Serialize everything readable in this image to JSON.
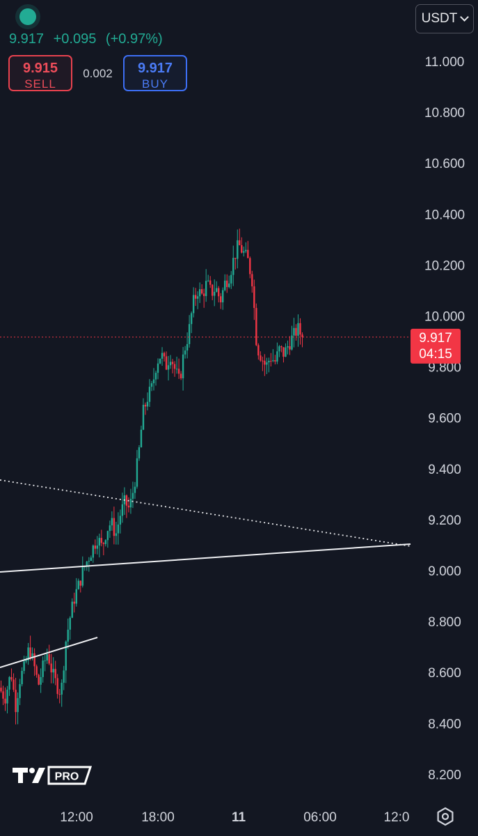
{
  "header": {
    "price": "9.917",
    "change": "+0.095",
    "change_pct": "(+0.97%)",
    "accent": "#22ab94"
  },
  "trade": {
    "sell_price": "9.915",
    "sell_label": "SELL",
    "spread": "0.002",
    "buy_price": "9.917",
    "buy_label": "BUY",
    "sell_color": "#ef4d5a",
    "buy_color": "#4b7cf7"
  },
  "currency_selector": {
    "value": "USDT",
    "icon": "chevron-down-icon"
  },
  "branding": {
    "logo": "tradingview-logo",
    "badge": "PRO"
  },
  "toolbar": {
    "settings_icon": "gear-icon"
  },
  "chart_data": {
    "type": "candlestick",
    "y_ticks": [
      11.0,
      10.8,
      10.6,
      10.4,
      10.2,
      10.0,
      9.8,
      9.6,
      9.4,
      9.2,
      9.0,
      8.8,
      8.6,
      8.4,
      8.2
    ],
    "y_tick_labels": [
      "11.000",
      "10.800",
      "10.600",
      "10.400",
      "10.200",
      "10.000",
      "9.800",
      "9.600",
      "9.400",
      "9.200",
      "9.000",
      "8.800",
      "8.600",
      "8.400",
      "8.200"
    ],
    "ylim": [
      8.08,
      11.12
    ],
    "x_tick_labels": [
      "12:00",
      "18:00",
      "11",
      "06:00",
      "12:0"
    ],
    "current_price": 9.917,
    "current_price_label": "9.917",
    "countdown": "04:15",
    "up_color": "#22ab94",
    "down_color": "#f23645",
    "price_path": [
      [
        0,
        8.54
      ],
      [
        4,
        8.5
      ],
      [
        8,
        8.6
      ],
      [
        11,
        8.47
      ],
      [
        14,
        8.58
      ],
      [
        17,
        8.62
      ],
      [
        20,
        8.7
      ],
      [
        23,
        8.63
      ],
      [
        26,
        8.55
      ],
      [
        29,
        8.62
      ],
      [
        32,
        8.68
      ],
      [
        35,
        8.6
      ],
      [
        38,
        8.55
      ],
      [
        41,
        8.52
      ],
      [
        44,
        8.72
      ],
      [
        47,
        8.82
      ],
      [
        50,
        8.9
      ],
      [
        53,
        8.95
      ],
      [
        56,
        9.01
      ],
      [
        59,
        9.05
      ],
      [
        62,
        9.09
      ],
      [
        65,
        9.13
      ],
      [
        68,
        9.09
      ],
      [
        71,
        9.16
      ],
      [
        74,
        9.19
      ],
      [
        77,
        9.14
      ],
      [
        80,
        9.22
      ],
      [
        83,
        9.27
      ],
      [
        86,
        9.24
      ],
      [
        89,
        9.33
      ],
      [
        92,
        9.45
      ],
      [
        95,
        9.62
      ],
      [
        98,
        9.68
      ],
      [
        101,
        9.72
      ],
      [
        104,
        9.82
      ],
      [
        107,
        9.85
      ],
      [
        110,
        9.8
      ],
      [
        113,
        9.85
      ],
      [
        116,
        9.79
      ],
      [
        119,
        9.74
      ],
      [
        122,
        9.86
      ],
      [
        125,
        9.93
      ],
      [
        128,
        10.05
      ],
      [
        131,
        10.1
      ],
      [
        134,
        10.08
      ],
      [
        137,
        10.13
      ],
      [
        140,
        10.09
      ],
      [
        143,
        10.11
      ],
      [
        146,
        10.06
      ],
      [
        149,
        10.13
      ],
      [
        152,
        10.16
      ],
      [
        155,
        10.23
      ],
      [
        158,
        10.28
      ],
      [
        161,
        10.25
      ],
      [
        164,
        10.22
      ],
      [
        167,
        10.14
      ],
      [
        170,
        9.88
      ],
      [
        173,
        9.84
      ],
      [
        176,
        9.8
      ],
      [
        179,
        9.84
      ],
      [
        182,
        9.82
      ],
      [
        185,
        9.87
      ],
      [
        188,
        9.85
      ],
      [
        191,
        9.89
      ],
      [
        194,
        9.92
      ],
      [
        197,
        9.95
      ],
      [
        200,
        9.917
      ]
    ]
  }
}
